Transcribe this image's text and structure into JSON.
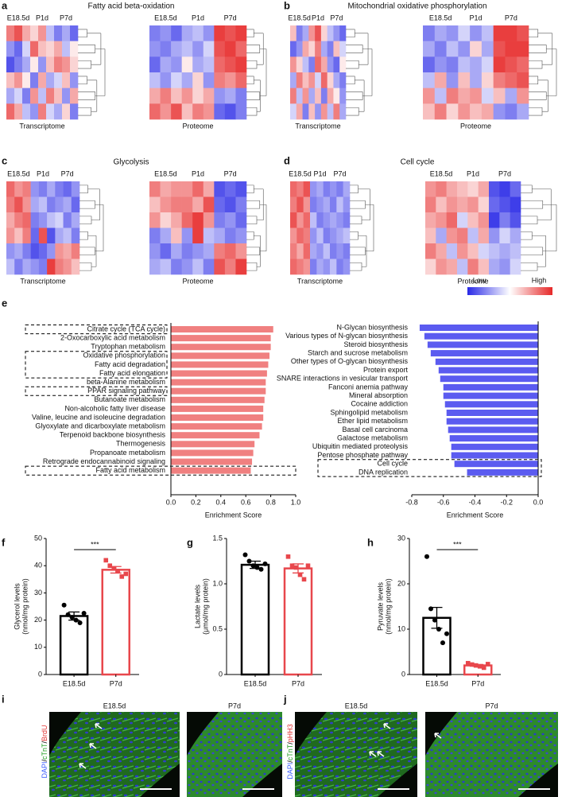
{
  "chart_data": [
    {
      "type": "heatmap",
      "panel": "a",
      "title": "Fatty acid beta-oxidation",
      "column_groups": [
        "E18.5d",
        "P1d",
        "P7d"
      ],
      "colormap": [
        "#2828e6",
        "#ffffff",
        "#e62828"
      ],
      "vlim": [
        -1,
        1
      ],
      "panels": [
        {
          "label": "Transcriptome",
          "values": [
            [
              0.6,
              0.8,
              0.4,
              0.2,
              0.5,
              -0.3,
              -0.6,
              -0.4,
              -0.7
            ],
            [
              -0.5,
              -0.7,
              -0.2,
              0.7,
              0.3,
              0.2,
              0.4,
              -0.3,
              0.1
            ],
            [
              -0.8,
              -0.6,
              -0.4,
              0.1,
              -0.5,
              0.3,
              0.6,
              0.5,
              0.2
            ],
            [
              0.3,
              0.5,
              0.1,
              -0.6,
              0.4,
              -0.4,
              -0.2,
              0.3,
              -0.5
            ],
            [
              -0.4,
              -0.2,
              -0.6,
              0.5,
              -0.3,
              0.6,
              0.3,
              -0.5,
              0.4
            ],
            [
              0.7,
              0.4,
              -0.3,
              -0.5,
              0.6,
              -0.2,
              -0.4,
              0.2,
              -0.6
            ]
          ]
        },
        {
          "label": "Proteome",
          "values": [
            [
              -0.6,
              -0.5,
              -0.7,
              -0.4,
              -0.3,
              -0.5,
              0.9,
              0.8,
              0.9
            ],
            [
              -0.5,
              -0.6,
              -0.4,
              -0.3,
              -0.5,
              -0.2,
              0.8,
              0.9,
              0.7
            ],
            [
              -0.7,
              -0.4,
              -0.5,
              0.1,
              -0.4,
              -0.3,
              0.7,
              0.8,
              0.9
            ],
            [
              -0.3,
              -0.5,
              -0.2,
              -0.4,
              0.2,
              -0.5,
              0.6,
              0.5,
              0.7
            ],
            [
              0.4,
              0.6,
              0.3,
              0.5,
              0.2,
              0.4,
              -0.5,
              -0.4,
              -0.6
            ],
            [
              0.7,
              0.5,
              0.8,
              0.3,
              0.6,
              0.5,
              -0.7,
              -0.8,
              -0.6
            ]
          ]
        }
      ]
    },
    {
      "type": "heatmap",
      "panel": "b",
      "title": "Mitochondrial oxidative phosphorylation",
      "column_groups": [
        "E18.5d",
        "P1d",
        "P7d"
      ],
      "colormap": [
        "#2828e6",
        "#ffffff",
        "#e62828"
      ],
      "vlim": [
        -1,
        1
      ],
      "panels": [
        {
          "label": "Transcriptome",
          "values": [
            [
              0.3,
              -0.6,
              -0.4,
              0.5,
              0.8,
              0.2,
              -0.3,
              -0.5,
              -0.7
            ],
            [
              -0.7,
              -0.5,
              0.4,
              0.2,
              0.6,
              -0.4,
              -0.6,
              0.3,
              -0.2
            ],
            [
              0.5,
              0.2,
              -0.3,
              -0.6,
              0.7,
              0.4,
              -0.5,
              -0.7,
              0.1
            ],
            [
              -0.4,
              0.6,
              0.3,
              0.5,
              -0.2,
              0.7,
              0.2,
              -0.4,
              -0.6
            ],
            [
              0.6,
              -0.3,
              0.5,
              -0.4,
              0.3,
              -0.6,
              0.4,
              0.1,
              -0.5
            ],
            [
              -0.2,
              0.4,
              -0.6,
              0.3,
              -0.5,
              0.5,
              -0.3,
              0.6,
              -0.4
            ]
          ]
        },
        {
          "label": "Proteome",
          "values": [
            [
              -0.6,
              -0.4,
              -0.5,
              -0.2,
              -0.5,
              -0.3,
              0.9,
              0.9,
              0.8
            ],
            [
              -0.4,
              -0.6,
              -0.3,
              -0.5,
              0.2,
              -0.4,
              0.8,
              0.9,
              0.9
            ],
            [
              -0.7,
              -0.5,
              -0.6,
              -0.3,
              -0.4,
              -0.2,
              0.9,
              0.8,
              0.7
            ],
            [
              -0.3,
              0.4,
              -0.5,
              0.3,
              -0.4,
              0.2,
              0.6,
              0.7,
              0.8
            ],
            [
              0.5,
              -0.3,
              0.6,
              0.4,
              0.5,
              -0.2,
              0.3,
              -0.4,
              0.5
            ],
            [
              0.3,
              0.6,
              0.2,
              0.5,
              0.3,
              0.4,
              -0.5,
              -0.6,
              -0.4
            ]
          ]
        }
      ]
    },
    {
      "type": "heatmap",
      "panel": "c",
      "title": "Glycolysis",
      "column_groups": [
        "E18.5d",
        "P1d",
        "P7d"
      ],
      "colormap": [
        "#2828e6",
        "#ffffff",
        "#e62828"
      ],
      "vlim": [
        -1,
        1
      ],
      "panels": [
        {
          "label": "Transcriptome",
          "values": [
            [
              0.7,
              0.5,
              0.6,
              -0.5,
              -0.6,
              -0.4,
              -0.6,
              -0.7,
              -0.5
            ],
            [
              0.6,
              0.8,
              0.5,
              -0.4,
              -0.3,
              -0.6,
              -0.5,
              -0.4,
              -0.7
            ],
            [
              0.4,
              0.6,
              0.7,
              -0.6,
              -0.5,
              -0.3,
              -0.2,
              -0.6,
              -0.4
            ],
            [
              0.5,
              0.3,
              0.6,
              -0.7,
              0.8,
              -0.8,
              -0.4,
              -0.3,
              -0.6
            ],
            [
              -0.5,
              -0.4,
              -0.6,
              -0.8,
              -0.7,
              -0.5,
              0.5,
              0.4,
              0.6
            ],
            [
              -0.3,
              -0.6,
              -0.4,
              -0.5,
              -0.6,
              0.9,
              0.6,
              0.5,
              0.3
            ]
          ]
        },
        {
          "label": "Proteome",
          "values": [
            [
              0.6,
              0.4,
              0.5,
              0.5,
              0.7,
              0.4,
              -0.8,
              -0.7,
              -0.8
            ],
            [
              0.3,
              0.5,
              0.6,
              0.6,
              0.4,
              0.8,
              -0.7,
              -0.8,
              -0.6
            ],
            [
              0.5,
              0.2,
              0.4,
              0.7,
              0.9,
              0.5,
              -0.6,
              -0.5,
              -0.7
            ],
            [
              -0.6,
              -0.4,
              0.3,
              -0.5,
              0.9,
              -0.3,
              -0.4,
              -0.6,
              -0.5
            ],
            [
              -0.5,
              -0.7,
              -0.4,
              -0.6,
              -0.5,
              -0.4,
              0.6,
              0.7,
              0.5
            ],
            [
              -0.4,
              -0.3,
              -0.6,
              -0.5,
              -0.3,
              -0.6,
              0.8,
              0.6,
              0.9
            ]
          ]
        }
      ]
    },
    {
      "type": "heatmap",
      "panel": "d",
      "title": "Cell cycle",
      "column_groups": [
        "E18.5d",
        "P1d",
        "P7d"
      ],
      "colormap": [
        "#2828e6",
        "#ffffff",
        "#e62828"
      ],
      "vlim": [
        -1,
        1
      ],
      "legend": {
        "low": "Low",
        "high": "High"
      },
      "panels": [
        {
          "label": "Transcriptome",
          "values": [
            [
              0.7,
              0.6,
              0.8,
              -0.5,
              -0.4,
              -0.6,
              -0.5,
              -0.6,
              -0.4
            ],
            [
              0.6,
              0.8,
              0.5,
              -0.6,
              -0.5,
              -0.4,
              -0.6,
              -0.3,
              -0.5
            ],
            [
              0.8,
              0.5,
              0.7,
              -0.3,
              -0.6,
              -0.5,
              -0.4,
              -0.5,
              -0.6
            ],
            [
              0.5,
              0.7,
              0.6,
              -0.5,
              -0.3,
              -0.6,
              -0.5,
              -0.4,
              -0.3
            ],
            [
              0.6,
              0.4,
              0.7,
              -0.4,
              -0.5,
              -0.3,
              -0.6,
              -0.5,
              -0.6
            ],
            [
              0.7,
              0.6,
              0.5,
              -0.6,
              -0.4,
              -0.5,
              -0.3,
              -0.6,
              -0.5
            ]
          ]
        },
        {
          "label": "Proteome",
          "values": [
            [
              0.5,
              0.6,
              0.4,
              0.3,
              0.2,
              0.4,
              -0.8,
              -0.9,
              -0.7
            ],
            [
              0.6,
              0.3,
              0.5,
              0.4,
              0.5,
              0.2,
              -0.7,
              -0.8,
              -0.9
            ],
            [
              0.4,
              0.5,
              0.7,
              -0.2,
              0.3,
              0.5,
              -0.9,
              -0.6,
              -0.8
            ],
            [
              0.3,
              -0.4,
              0.5,
              0.6,
              -0.3,
              0.4,
              -0.5,
              -0.2,
              -0.4
            ],
            [
              0.6,
              0.4,
              -0.3,
              0.5,
              0.3,
              -0.2,
              -0.3,
              -0.4,
              -0.3
            ],
            [
              0.2,
              0.5,
              0.4,
              -0.3,
              0.6,
              0.3,
              -0.4,
              -0.5,
              -0.2
            ]
          ]
        }
      ]
    },
    {
      "type": "hbar",
      "panel": "e",
      "color": "#f08080",
      "xlabel": "Enrichment Score",
      "categories": [
        "Citrate cycle (TCA cycle)",
        "2-Oxocarboxylic acid metabolism",
        "Tryptophan metabolism",
        "Oxidative phosphorylation",
        "Fatty acid degradation",
        "Fatty acid elongation",
        "beta-Alanine metabolism",
        "PPAR signaling pathway",
        "Butanoate metabolism",
        "Non-alcoholic fatty liver disease",
        "Valine, leucine and isoleucine degradation",
        "Glyoxylate and dicarboxylate metabolism",
        "Terpenoid backbone biosynthesis",
        "Thermogenesis",
        "Propanoate metabolism",
        "Retrograde endocannabinoid signaling",
        "Fatty acid metabolism"
      ],
      "values": [
        0.82,
        0.8,
        0.8,
        0.79,
        0.78,
        0.77,
        0.76,
        0.76,
        0.75,
        0.74,
        0.74,
        0.73,
        0.71,
        0.67,
        0.66,
        0.65,
        0.64
      ],
      "xlim": [
        0,
        1
      ],
      "xticks": [
        {
          "value": 0,
          "label": "0.0"
        },
        0.2,
        0.4,
        0.6,
        0.8,
        {
          "value": 1,
          "label": "1.0"
        }
      ]
    },
    {
      "type": "hbar",
      "color": "#5b5bf0",
      "xlabel": "Enrichment Score",
      "categories": [
        "N-Glycan biosynthesis",
        "Various types of N-glycan biosynthesis",
        "Steroid biosynthesis",
        "Starch and sucrose metabolism",
        "Other types of O-glycan biosynthesis",
        "Protein export",
        "SNARE interactions in vesicular transport",
        "Fanconi anemia pathway",
        "Mineral absorption",
        "Cocaine addiction",
        "Sphingolipid metabolism",
        "Ether lipid metabolism",
        "Basal cell carcinoma",
        "Galactose metabolism",
        "Ubiquitin mediated proteolysis",
        "Pentose phosphate pathway",
        "Cell cycle",
        "DNA replication"
      ],
      "values": [
        -0.75,
        -0.72,
        -0.7,
        -0.68,
        -0.65,
        -0.63,
        -0.62,
        -0.6,
        -0.6,
        -0.59,
        -0.58,
        -0.58,
        -0.57,
        -0.56,
        -0.55,
        -0.55,
        -0.53,
        -0.45
      ],
      "xlim": [
        -0.8,
        0
      ],
      "xticks": [
        -0.8,
        -0.6,
        -0.4,
        -0.2,
        {
          "value": 0,
          "label": "0.0"
        }
      ]
    },
    {
      "type": "bar",
      "panel": "f",
      "ylabel": [
        "Glycerol levels",
        "(nmol/mg protein)"
      ],
      "categories": [
        "E18.5d",
        "P7d"
      ],
      "colors": [
        "#000000",
        "#e8474c"
      ],
      "markers": [
        "circle",
        "square"
      ],
      "values": [
        21.5,
        38.5
      ],
      "errors": [
        1.5,
        1.2
      ],
      "points": [
        [
          25.5,
          22,
          21,
          20,
          19,
          22.5
        ],
        [
          42,
          40,
          39,
          38,
          36,
          37
        ]
      ],
      "annotation": "***",
      "ylim": [
        0,
        50
      ],
      "yticks": [
        0,
        10,
        20,
        30,
        40,
        50
      ]
    },
    {
      "type": "bar",
      "panel": "g",
      "ylabel": [
        "Lactate levels",
        "(μmol/mg protein)"
      ],
      "categories": [
        "E18.5d",
        "P7d"
      ],
      "colors": [
        "#000000",
        "#e8474c"
      ],
      "markers": [
        "circle",
        "square"
      ],
      "values": [
        1.21,
        1.17
      ],
      "errors": [
        0.04,
        0.05
      ],
      "points": [
        [
          1.32,
          1.25,
          1.2,
          1.18,
          1.16,
          1.22
        ],
        [
          1.3,
          1.2,
          1.18,
          1.1,
          1.05,
          1.2
        ]
      ],
      "ylim": [
        0,
        1.5
      ],
      "yticks": [
        0,
        0.5,
        {
          "value": 1,
          "label": "1.0"
        },
        1.5
      ]
    },
    {
      "type": "bar",
      "panel": "h",
      "ylabel": [
        "Pyruvate levels",
        "(nmol/mg protein)"
      ],
      "categories": [
        "E18.5d",
        "P7d"
      ],
      "colors": [
        "#000000",
        "#e8474c"
      ],
      "markers": [
        "circle",
        "square"
      ],
      "values": [
        12.5,
        2
      ],
      "errors": [
        2.3,
        0.2
      ],
      "points": [
        [
          26,
          14.5,
          12,
          10,
          7,
          9
        ],
        [
          2.5,
          2.2,
          2,
          1.8,
          1.5,
          2.3
        ]
      ],
      "annotation": "***",
      "ylim": [
        0,
        30
      ],
      "yticks": [
        0,
        10,
        20,
        30
      ]
    }
  ],
  "micrographs": [
    {
      "panel": "i",
      "stain": [
        {
          "text": "DAPI",
          "color": "#4060ff"
        },
        {
          "text": "/",
          "color": "#000000"
        },
        {
          "text": "cTnT",
          "color": "#1a9a1a"
        },
        {
          "text": "/",
          "color": "#000000"
        },
        {
          "text": "BrdU",
          "color": "#e03030"
        }
      ],
      "conditions": [
        "E18.5d",
        "P7d"
      ]
    },
    {
      "panel": "j",
      "stain": [
        {
          "text": "DAPI",
          "color": "#4060ff"
        },
        {
          "text": "/",
          "color": "#000000"
        },
        {
          "text": "cTnT",
          "color": "#1a9a1a"
        },
        {
          "text": "/",
          "color": "#000000"
        },
        {
          "text": "pHH3",
          "color": "#e03030"
        }
      ],
      "conditions": [
        "E18.5d",
        "P7d"
      ]
    }
  ]
}
